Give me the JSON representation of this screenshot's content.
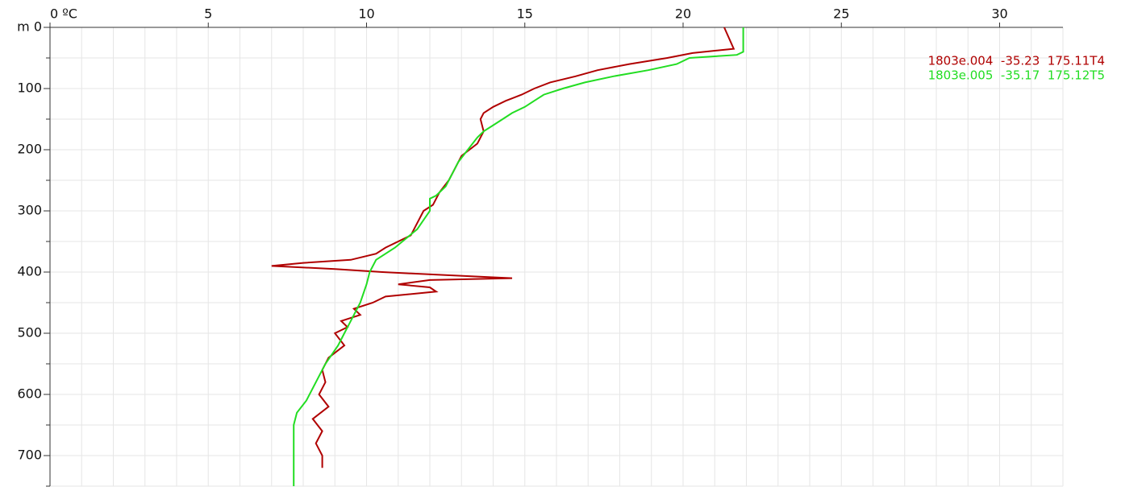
{
  "chart_data": {
    "type": "line",
    "xlim": [
      0,
      32
    ],
    "xticks": [
      {
        "value": 0,
        "label": "0 ºC"
      },
      5,
      10,
      15,
      20,
      25,
      30
    ],
    "xminorticks": [
      0,
      1,
      2,
      3,
      4,
      5,
      6,
      7,
      8,
      9,
      10,
      11,
      12,
      13,
      14,
      15,
      16,
      17,
      18,
      19,
      20,
      21,
      22,
      23,
      24,
      25,
      26,
      27,
      28,
      29,
      30,
      31,
      32
    ],
    "ylim": [
      0,
      750
    ],
    "yticks": [
      {
        "value": 0,
        "label": "m 0"
      },
      100,
      200,
      300,
      400,
      500,
      600,
      700
    ],
    "yminorticks": [
      0,
      50,
      100,
      150,
      200,
      250,
      300,
      350,
      400,
      450,
      500,
      550,
      600,
      650,
      700,
      750
    ],
    "y_inverted": true,
    "grid": true,
    "legend": "upper right",
    "series": [
      {
        "name": "1803e.004  -35.23  175.11T4",
        "color": "#b00000",
        "depth": [
          0,
          35,
          42,
          50,
          60,
          70,
          80,
          90,
          100,
          110,
          120,
          130,
          140,
          150,
          170,
          190,
          210,
          230,
          250,
          270,
          290,
          300,
          320,
          340,
          360,
          370,
          380,
          385,
          390,
          395,
          400,
          405,
          410,
          413,
          420,
          425,
          432,
          440,
          450,
          460,
          470,
          480,
          490,
          500,
          520,
          540,
          560,
          580,
          600,
          620,
          640,
          660,
          680,
          700,
          720
        ],
        "values": [
          21.3,
          21.6,
          20.3,
          19.5,
          18.3,
          17.3,
          16.6,
          15.8,
          15.3,
          14.9,
          14.4,
          14.0,
          13.7,
          13.6,
          13.7,
          13.5,
          13.0,
          12.8,
          12.6,
          12.3,
          12.1,
          11.8,
          11.6,
          11.4,
          10.6,
          10.3,
          9.5,
          8.0,
          7.0,
          9.0,
          10.5,
          12.5,
          14.6,
          12.0,
          11.0,
          12.0,
          12.2,
          10.6,
          10.2,
          9.6,
          9.8,
          9.2,
          9.4,
          9.0,
          9.3,
          8.8,
          8.6,
          8.7,
          8.5,
          8.8,
          8.3,
          8.6,
          8.4,
          8.6,
          8.6
        ]
      },
      {
        "name": "1803e.005  -35.17  175.12T5",
        "color": "#22dd22",
        "depth": [
          0,
          40,
          45,
          50,
          60,
          70,
          80,
          90,
          100,
          110,
          120,
          130,
          140,
          150,
          160,
          170,
          180,
          200,
          220,
          240,
          260,
          275,
          280,
          300,
          330,
          360,
          380,
          400,
          420,
          450,
          480,
          500,
          520,
          550,
          580,
          610,
          630,
          650,
          700,
          750
        ],
        "values": [
          21.9,
          21.9,
          21.7,
          20.2,
          19.8,
          18.9,
          17.8,
          16.9,
          16.2,
          15.6,
          15.3,
          15.0,
          14.6,
          14.3,
          14.0,
          13.7,
          13.5,
          13.2,
          12.9,
          12.7,
          12.5,
          12.2,
          12.0,
          12.0,
          11.6,
          10.9,
          10.3,
          10.1,
          10.0,
          9.8,
          9.5,
          9.3,
          9.1,
          8.7,
          8.4,
          8.1,
          7.8,
          7.7,
          7.7,
          7.7
        ]
      }
    ]
  }
}
